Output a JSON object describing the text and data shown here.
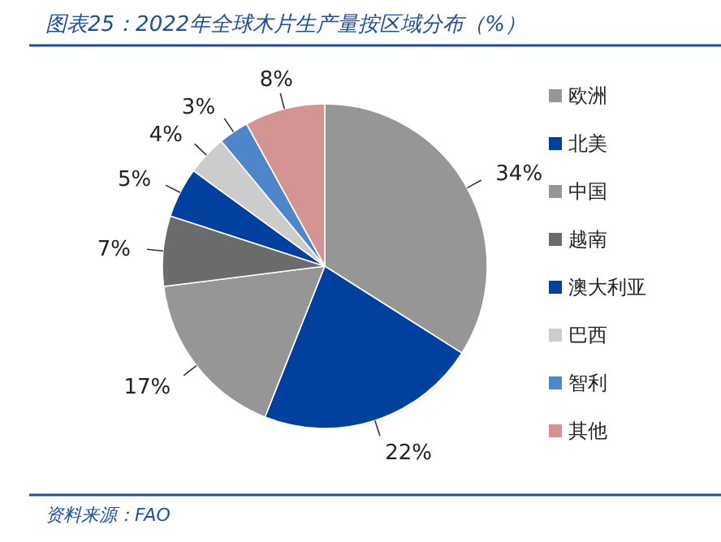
{
  "chart_data": {
    "type": "pie",
    "title": "图表25：2022年全球木片生产量按区域分布（%）",
    "categories": [
      "欧洲",
      "北美",
      "中国",
      "越南",
      "澳大利亚",
      "巴西",
      "智利",
      "其他"
    ],
    "values": [
      34,
      22,
      17,
      7,
      5,
      4,
      3,
      8
    ],
    "colors": [
      "#969696",
      "#0041a0",
      "#969696",
      "#6b6b6b",
      "#0041a0",
      "#cccccc",
      "#4f86c9",
      "#d49494"
    ],
    "value_labels": [
      "34%",
      "22%",
      "17%",
      "7%",
      "5%",
      "4%",
      "3%",
      "8%"
    ],
    "legend": "right",
    "annotations": [
      "资料来源：FAO"
    ]
  }
}
